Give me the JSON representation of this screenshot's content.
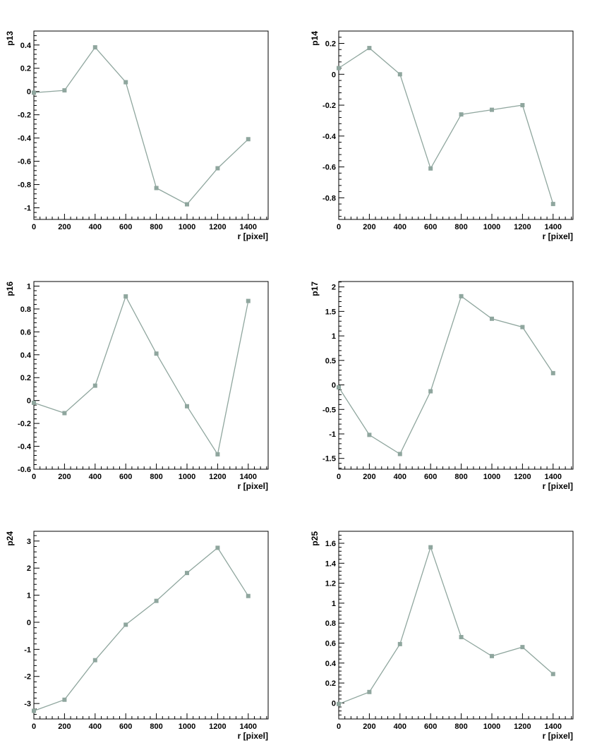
{
  "style": {
    "marker_color": "#8fa69e",
    "line_color": "#8fa69e",
    "axis_color": "#000000"
  },
  "chart_data": [
    {
      "type": "line",
      "ylabel": "p13",
      "xlabel": "r [pixel]",
      "x": [
        0,
        200,
        400,
        600,
        800,
        1000,
        1200,
        1400
      ],
      "values": [
        -0.01,
        0.01,
        0.38,
        0.08,
        -0.83,
        -0.97,
        -0.66,
        -0.41
      ],
      "xlim": [
        0,
        1530
      ],
      "ylim": [
        -1.1,
        0.52
      ],
      "yticks": [
        -1,
        -0.8,
        -0.6,
        -0.4,
        -0.2,
        0,
        0.2,
        0.4
      ],
      "ytick_labels": [
        "-1",
        "-0.8",
        "-0.6",
        "-0.4",
        "-0.2",
        "0",
        "0.2",
        "0.4"
      ],
      "xticks": [
        0,
        200,
        400,
        600,
        800,
        1000,
        1200,
        1400
      ],
      "xtick_labels": [
        "0",
        "200",
        "400",
        "600",
        "800",
        "1000",
        "1200",
        "1400"
      ]
    },
    {
      "type": "line",
      "ylabel": "p14",
      "xlabel": "r [pixel]",
      "x": [
        0,
        200,
        400,
        600,
        800,
        1000,
        1200,
        1400
      ],
      "values": [
        0.04,
        0.17,
        0.0,
        -0.61,
        -0.26,
        -0.23,
        -0.2,
        -0.84
      ],
      "xlim": [
        0,
        1530
      ],
      "ylim": [
        -0.94,
        0.28
      ],
      "yticks": [
        -0.8,
        -0.6,
        -0.4,
        -0.2,
        0,
        0.2
      ],
      "ytick_labels": [
        "-0.8",
        "-0.6",
        "-0.4",
        "-0.2",
        "0",
        "0.2"
      ],
      "xticks": [
        0,
        200,
        400,
        600,
        800,
        1000,
        1200,
        1400
      ],
      "xtick_labels": [
        "0",
        "200",
        "400",
        "600",
        "800",
        "1000",
        "1200",
        "1400"
      ]
    },
    {
      "type": "line",
      "ylabel": "p16",
      "xlabel": "r [pixel]",
      "x": [
        0,
        200,
        400,
        600,
        800,
        1000,
        1200,
        1400
      ],
      "values": [
        -0.02,
        -0.11,
        0.13,
        0.91,
        0.41,
        -0.05,
        -0.47,
        0.87
      ],
      "xlim": [
        0,
        1530
      ],
      "ylim": [
        -0.6,
        1.04
      ],
      "yticks": [
        -0.6,
        -0.4,
        -0.2,
        0,
        0.2,
        0.4,
        0.6,
        0.8,
        1
      ],
      "ytick_labels": [
        "-0.6",
        "-0.4",
        "-0.2",
        "0",
        "0.2",
        "0.4",
        "0.6",
        "0.8",
        "1"
      ],
      "xticks": [
        0,
        200,
        400,
        600,
        800,
        1000,
        1200,
        1400
      ],
      "xtick_labels": [
        "0",
        "200",
        "400",
        "600",
        "800",
        "1000",
        "1200",
        "1400"
      ]
    },
    {
      "type": "line",
      "ylabel": "p17",
      "xlabel": "r [pixel]",
      "x": [
        0,
        200,
        400,
        600,
        800,
        1000,
        1200,
        1400
      ],
      "values": [
        -0.05,
        -1.02,
        -1.41,
        -0.13,
        1.81,
        1.35,
        1.18,
        0.24
      ],
      "xlim": [
        0,
        1530
      ],
      "ylim": [
        -1.72,
        2.11
      ],
      "yticks": [
        -1.5,
        -1,
        -0.5,
        0,
        0.5,
        1,
        1.5,
        2
      ],
      "ytick_labels": [
        "-1.5",
        "-1",
        "-0.5",
        "0",
        "0.5",
        "1",
        "1.5",
        "2"
      ],
      "xticks": [
        0,
        200,
        400,
        600,
        800,
        1000,
        1200,
        1400
      ],
      "xtick_labels": [
        "0",
        "200",
        "400",
        "600",
        "800",
        "1000",
        "1200",
        "1400"
      ]
    },
    {
      "type": "line",
      "ylabel": "p24",
      "xlabel": "r [pixel]",
      "x": [
        0,
        200,
        400,
        600,
        800,
        1000,
        1200,
        1400
      ],
      "values": [
        -3.27,
        -2.86,
        -1.4,
        -0.09,
        0.79,
        1.82,
        2.75,
        0.97
      ],
      "xlim": [
        0,
        1530
      ],
      "ylim": [
        -3.57,
        3.36
      ],
      "yticks": [
        -3,
        -2,
        -1,
        0,
        1,
        2,
        3
      ],
      "ytick_labels": [
        "-3",
        "-2",
        "-1",
        "0",
        "1",
        "2",
        "3"
      ],
      "xticks": [
        0,
        200,
        400,
        600,
        800,
        1000,
        1200,
        1400
      ],
      "xtick_labels": [
        "0",
        "200",
        "400",
        "600",
        "800",
        "1000",
        "1200",
        "1400"
      ]
    },
    {
      "type": "line",
      "ylabel": "p25",
      "xlabel": "r [pixel]",
      "x": [
        0,
        200,
        400,
        600,
        800,
        1000,
        1200,
        1400
      ],
      "values": [
        -0.01,
        0.11,
        0.59,
        1.56,
        0.66,
        0.47,
        0.56,
        0.29
      ],
      "xlim": [
        0,
        1530
      ],
      "ylim": [
        -0.16,
        1.72
      ],
      "yticks": [
        0,
        0.2,
        0.4,
        0.6,
        0.8,
        1,
        1.2,
        1.4,
        1.6
      ],
      "ytick_labels": [
        "0",
        "0.2",
        "0.4",
        "0.6",
        "0.8",
        "1",
        "1.2",
        "1.4",
        "1.6"
      ],
      "xticks": [
        0,
        200,
        400,
        600,
        800,
        1000,
        1200,
        1400
      ],
      "xtick_labels": [
        "0",
        "200",
        "400",
        "600",
        "800",
        "1000",
        "1200",
        "1400"
      ]
    }
  ]
}
